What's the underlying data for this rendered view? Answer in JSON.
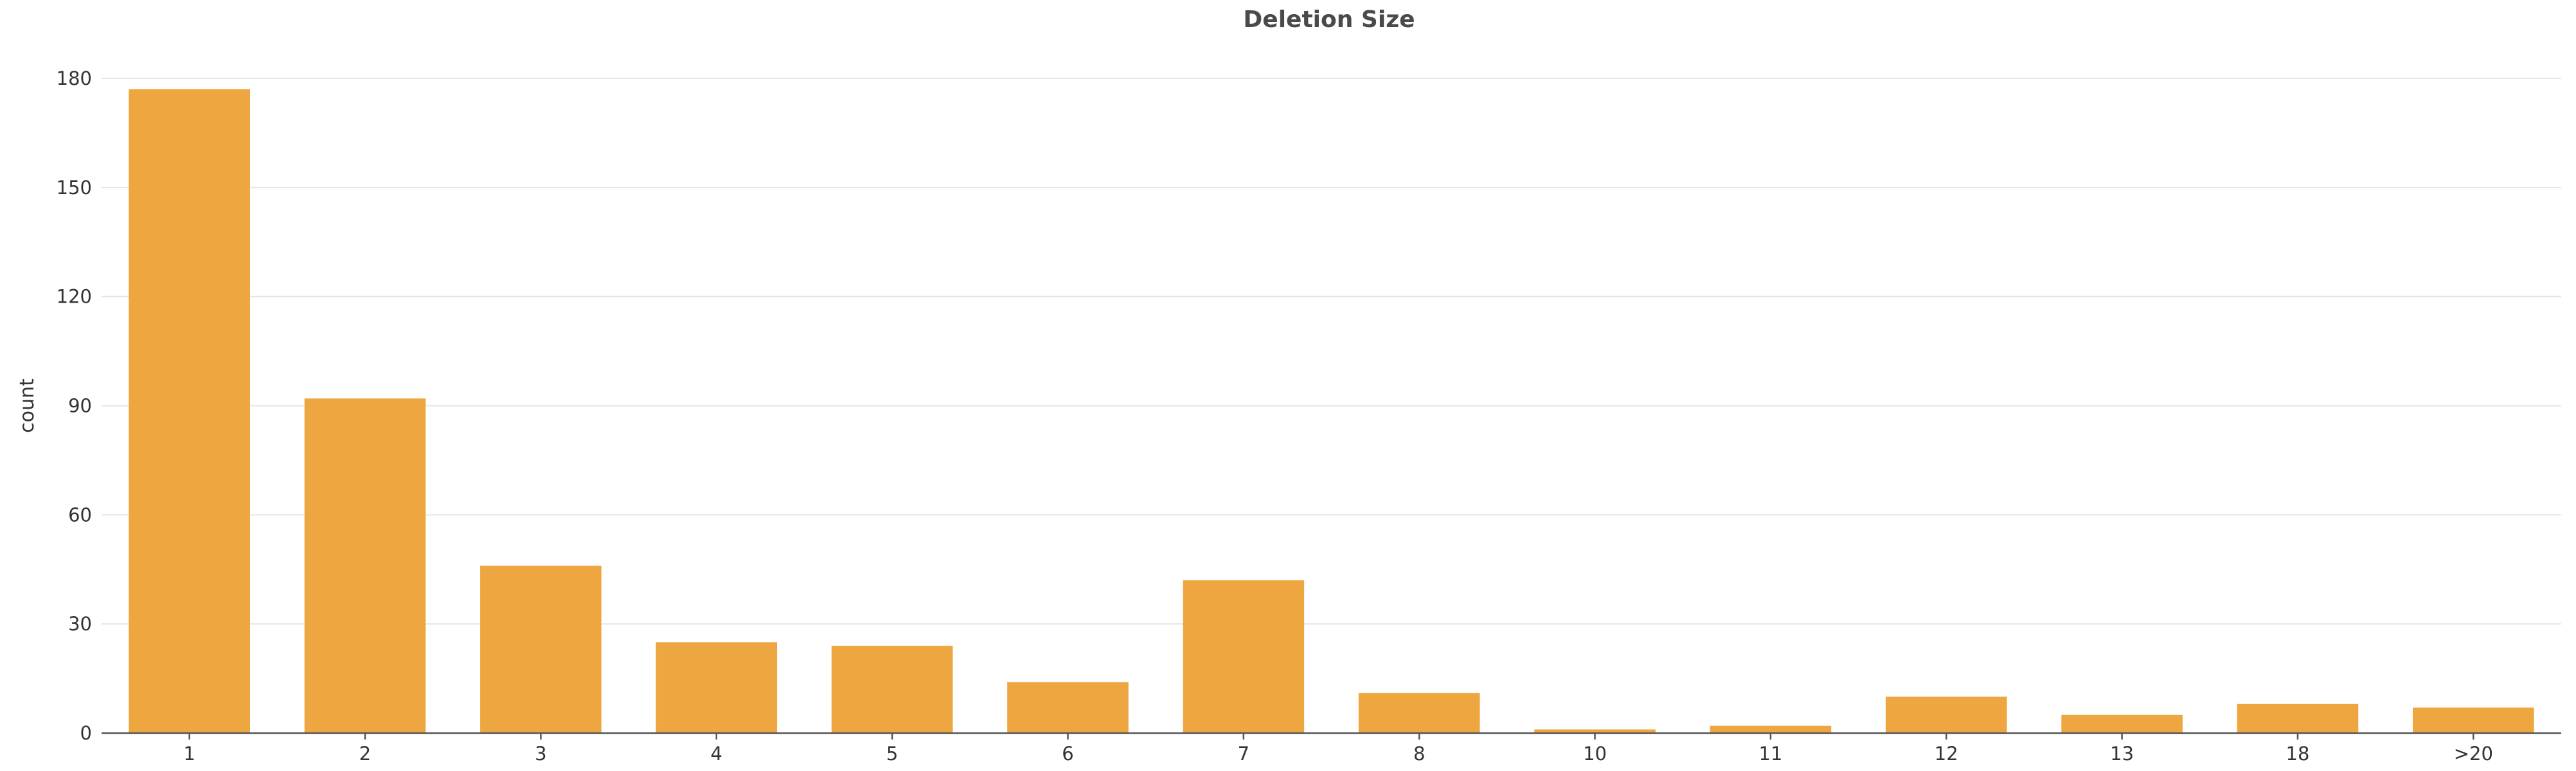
{
  "colors": {
    "bar": "#EEA740",
    "background": "#FFFFFF",
    "grid": "#E5E5E5",
    "axis": "#555555",
    "text": "#333333",
    "title": "#4A4A4A"
  },
  "chart_data": {
    "type": "bar",
    "title": "Deletion Size",
    "xlabel": "",
    "ylabel": "count",
    "categories": [
      "1",
      "2",
      "3",
      "4",
      "5",
      "6",
      "7",
      "8",
      "10",
      "11",
      "12",
      "13",
      "18",
      ">20"
    ],
    "values": [
      177,
      92,
      46,
      25,
      24,
      14,
      42,
      11,
      1,
      2,
      10,
      5,
      8,
      7
    ],
    "ylim": [
      0,
      180
    ],
    "yticks": [
      0,
      30,
      60,
      90,
      120,
      150,
      180
    ],
    "grid": true,
    "legend": false
  }
}
